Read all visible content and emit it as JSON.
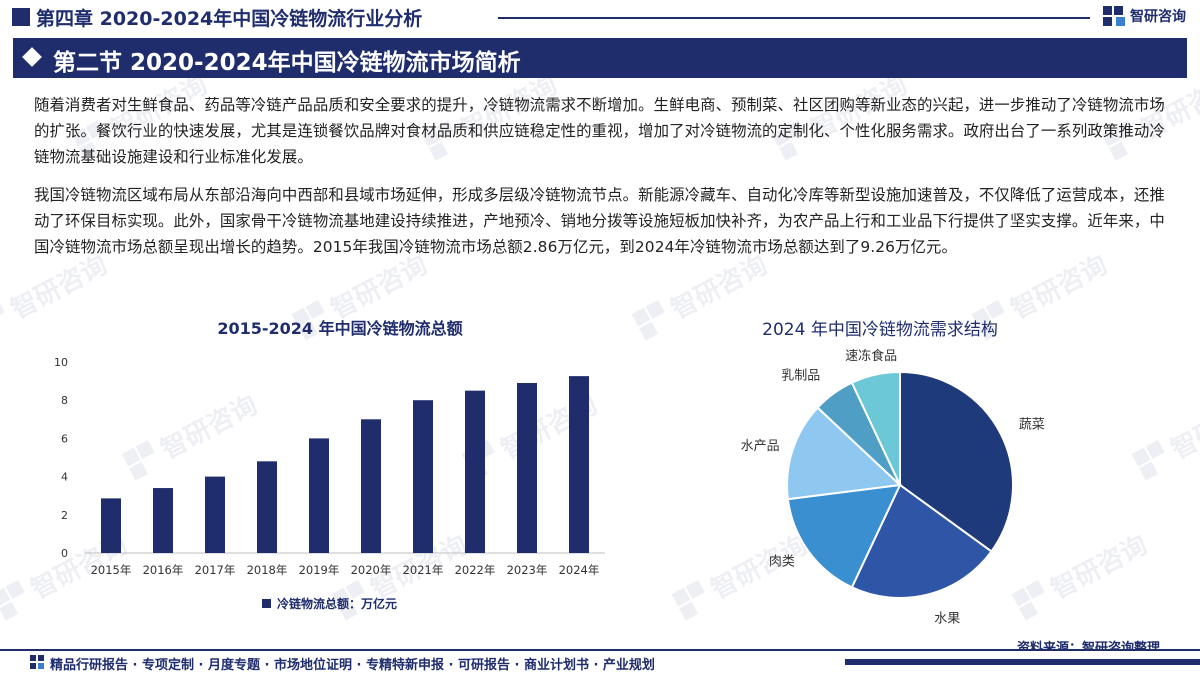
{
  "header": {
    "chapter_title": "第四章 2020-2024年中国冷链物流行业分析",
    "logo_text": "智研咨询",
    "watermark_text": "智研咨询"
  },
  "section": {
    "title": "第二节 2020-2024年中国冷链物流市场简析"
  },
  "paragraphs": [
    "随着消费者对生鲜食品、药品等冷链产品品质和安全要求的提升，冷链物流需求不断增加。生鲜电商、预制菜、社区团购等新业态的兴起，进一步推动了冷链物流市场的扩张。餐饮行业的快速发展，尤其是连锁餐饮品牌对食材品质和供应链稳定性的重视，增加了对冷链物流的定制化、个性化服务需求。政府出台了一系列政策推动冷链物流基础设施建设和行业标准化发展。",
    "我国冷链物流区域布局从东部沿海向中西部和县域市场延伸，形成多层级冷链物流节点。新能源冷藏车、自动化冷库等新型设施加速普及，不仅降低了运营成本，还推动了环保目标实现。此外，国家骨干冷链物流基地建设持续推进，产地预冷、销地分拨等设施短板加快补齐，为农产品上行和工业品下行提供了坚实支撑。近年来，中国冷链物流市场总额呈现出增长的趋势。2015年我国冷链物流市场总额2.86万亿元，到2024年冷链物流市场总额达到了9.26万亿元。"
  ],
  "chart_data": [
    {
      "type": "bar",
      "title": "2015-2024 年中国冷链物流总额",
      "categories": [
        "2015年",
        "2016年",
        "2017年",
        "2018年",
        "2019年",
        "2020年",
        "2021年",
        "2022年",
        "2023年",
        "2024年"
      ],
      "series": [
        {
          "name": "冷链物流总额：万亿元",
          "values": [
            2.86,
            3.4,
            4.0,
            4.8,
            6.0,
            7.0,
            8.0,
            8.5,
            8.9,
            9.26
          ]
        }
      ],
      "yticks": [
        "0",
        "2",
        "4",
        "6",
        "8",
        "10"
      ],
      "ylim": [
        0,
        10
      ],
      "grid": false,
      "legend": "bottom",
      "color": "#1f2d6d"
    },
    {
      "type": "pie",
      "title": "2024 年中国冷链物流需求结构",
      "slices": [
        {
          "label": "蔬菜",
          "value": 35,
          "color": "#1f3a7a"
        },
        {
          "label": "水果",
          "value": 22,
          "color": "#2f56a6"
        },
        {
          "label": "肉类",
          "value": 16,
          "color": "#3a8fd0"
        },
        {
          "label": "水产品",
          "value": 14,
          "color": "#8ec8f0"
        },
        {
          "label": "乳制品",
          "value": 6,
          "color": "#4f9ec6"
        },
        {
          "label": "速冻食品",
          "value": 7,
          "color": "#6cc7d6"
        }
      ]
    }
  ],
  "source_text": "资料来源：智研咨询整理",
  "footer": {
    "text": "精品行研报告 · 专项定制 · 月度专题 · 市场地位证明 · 专精特新申报 · 可研报告 · 商业计划书 · 产业规划"
  }
}
